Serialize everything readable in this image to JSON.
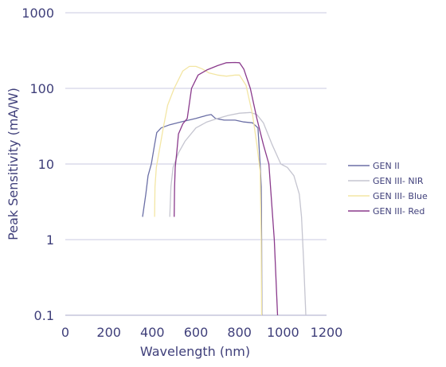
{
  "chart_data": {
    "type": "line",
    "title": "",
    "xlabel": "Wavelength (nm)",
    "ylabel": "Peak Sensitivity (mA/W)",
    "xlim": [
      0,
      1200
    ],
    "ylim": [
      0.1,
      1000
    ],
    "y_scale": "log",
    "grid": "horizontal",
    "legend_position": "right",
    "x_ticks": [
      "0",
      "200",
      "400",
      "600",
      "800",
      "1000",
      "1200"
    ],
    "y_ticks": [
      "0.1",
      "1",
      "10",
      "100",
      "1000"
    ],
    "series": [
      {
        "name": "GEN II",
        "color": "#6b6fa6",
        "points": [
          [
            355,
            2
          ],
          [
            370,
            4
          ],
          [
            380,
            7
          ],
          [
            395,
            10
          ],
          [
            410,
            18
          ],
          [
            420,
            26
          ],
          [
            440,
            30
          ],
          [
            480,
            33
          ],
          [
            530,
            36
          ],
          [
            600,
            40
          ],
          [
            650,
            44
          ],
          [
            670,
            45
          ],
          [
            690,
            40
          ],
          [
            730,
            38
          ],
          [
            780,
            38
          ],
          [
            820,
            36
          ],
          [
            860,
            35
          ],
          [
            885,
            30
          ],
          [
            895,
            10
          ],
          [
            900,
            5
          ],
          [
            902,
            1
          ],
          [
            903,
            0.1
          ]
        ]
      },
      {
        "name": "GEN III- NIR",
        "color": "#c5c5d0",
        "points": [
          [
            480,
            2
          ],
          [
            485,
            5
          ],
          [
            495,
            9
          ],
          [
            520,
            14
          ],
          [
            550,
            20
          ],
          [
            600,
            30
          ],
          [
            650,
            36
          ],
          [
            700,
            40
          ],
          [
            750,
            44
          ],
          [
            800,
            47
          ],
          [
            850,
            48
          ],
          [
            880,
            45
          ],
          [
            910,
            35
          ],
          [
            950,
            18
          ],
          [
            990,
            10
          ],
          [
            1020,
            9
          ],
          [
            1050,
            7
          ],
          [
            1075,
            4
          ],
          [
            1085,
            2
          ],
          [
            1095,
            0.5
          ],
          [
            1105,
            0.1
          ]
        ]
      },
      {
        "name": "GEN III- Blue",
        "color": "#f3e6a4",
        "points": [
          [
            410,
            2
          ],
          [
            412,
            5
          ],
          [
            418,
            9
          ],
          [
            430,
            14
          ],
          [
            450,
            30
          ],
          [
            470,
            60
          ],
          [
            500,
            100
          ],
          [
            540,
            170
          ],
          [
            570,
            195
          ],
          [
            600,
            195
          ],
          [
            630,
            180
          ],
          [
            660,
            160
          ],
          [
            700,
            150
          ],
          [
            740,
            145
          ],
          [
            780,
            150
          ],
          [
            800,
            150
          ],
          [
            830,
            110
          ],
          [
            860,
            45
          ],
          [
            880,
            18
          ],
          [
            895,
            8
          ],
          [
            900,
            1
          ],
          [
            902,
            0.1
          ]
        ]
      },
      {
        "name": "GEN III- Red",
        "color": "#8a3a8c",
        "points": [
          [
            500,
            2
          ],
          [
            502,
            5
          ],
          [
            505,
            9
          ],
          [
            512,
            14
          ],
          [
            520,
            25
          ],
          [
            540,
            34
          ],
          [
            560,
            40
          ],
          [
            580,
            100
          ],
          [
            610,
            150
          ],
          [
            650,
            175
          ],
          [
            700,
            200
          ],
          [
            740,
            218
          ],
          [
            780,
            220
          ],
          [
            800,
            218
          ],
          [
            820,
            180
          ],
          [
            850,
            100
          ],
          [
            880,
            40
          ],
          [
            910,
            18
          ],
          [
            935,
            10
          ],
          [
            945,
            4
          ],
          [
            960,
            1
          ],
          [
            975,
            0.1
          ]
        ]
      }
    ]
  }
}
